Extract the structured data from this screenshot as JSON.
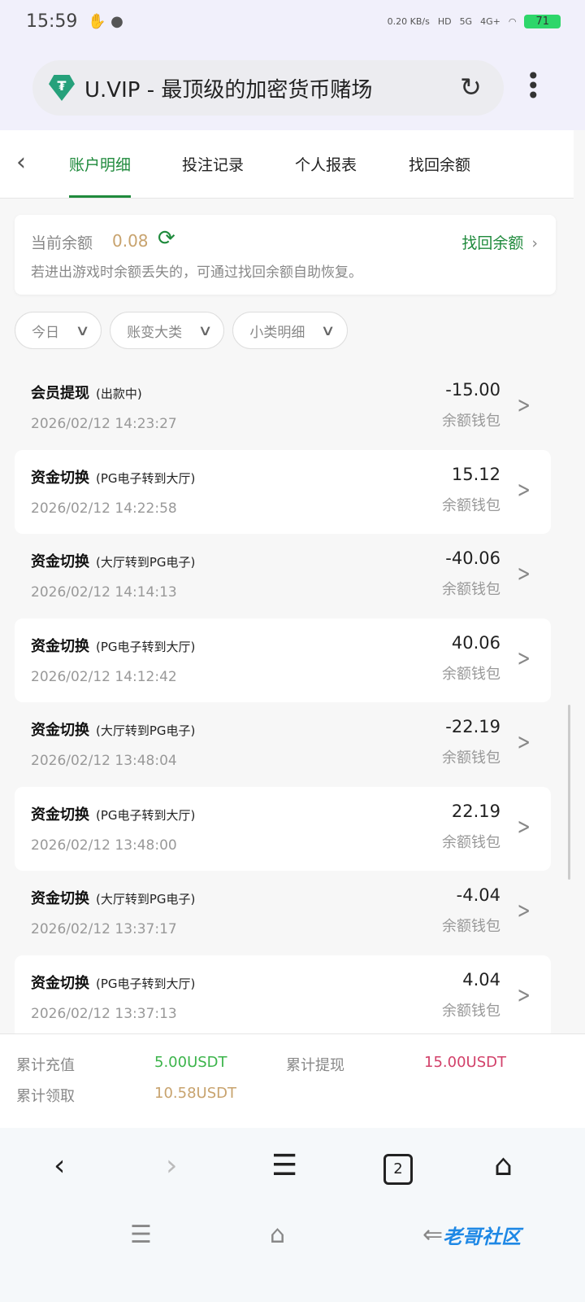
{
  "status_bar": {
    "time": "15:59",
    "net_speed": "0.20 KB/s",
    "hd": "HD",
    "signal1": "5G",
    "signal2": "4G+",
    "battery": "71"
  },
  "browser": {
    "title": "U.VIP - 最顶级的加密货币赌场",
    "logo_glyph": "₮"
  },
  "tabs": [
    {
      "label": "账户明细",
      "active": true
    },
    {
      "label": "投注记录"
    },
    {
      "label": "个人报表"
    },
    {
      "label": "找回余额"
    }
  ],
  "balance": {
    "label": "当前余额",
    "value": "0.08",
    "recover_label": "找回余额",
    "tip": "若进出游戏时余额丢失的，可通过找回余额自助恢复。"
  },
  "filters": [
    {
      "label": "今日"
    },
    {
      "label": "账变大类"
    },
    {
      "label": "小类明细"
    }
  ],
  "records": [
    {
      "title": "会员提现",
      "sub": "(出款中)",
      "date": "2026/02/12 14:23:27",
      "amount": "-15.00",
      "wallet": "余额钱包"
    },
    {
      "title": "资金切换",
      "sub": "(PG电子转到大厅)",
      "date": "2026/02/12 14:22:58",
      "amount": "15.12",
      "wallet": "余额钱包"
    },
    {
      "title": "资金切换",
      "sub": "(大厅转到PG电子)",
      "date": "2026/02/12 14:14:13",
      "amount": "-40.06",
      "wallet": "余额钱包"
    },
    {
      "title": "资金切换",
      "sub": "(PG电子转到大厅)",
      "date": "2026/02/12 14:12:42",
      "amount": "40.06",
      "wallet": "余额钱包"
    },
    {
      "title": "资金切换",
      "sub": "(大厅转到PG电子)",
      "date": "2026/02/12 13:48:04",
      "amount": "-22.19",
      "wallet": "余额钱包"
    },
    {
      "title": "资金切换",
      "sub": "(PG电子转到大厅)",
      "date": "2026/02/12 13:48:00",
      "amount": "22.19",
      "wallet": "余额钱包"
    },
    {
      "title": "资金切换",
      "sub": "(大厅转到PG电子)",
      "date": "2026/02/12 13:37:17",
      "amount": "-4.04",
      "wallet": "余额钱包"
    },
    {
      "title": "资金切换",
      "sub": "(PG电子转到大厅)",
      "date": "2026/02/12 13:37:13",
      "amount": "4.04",
      "wallet": "余额钱包"
    }
  ],
  "summary": {
    "deposit_label": "累计充值",
    "deposit": "5.00USDT",
    "withdraw_label": "累计提现",
    "withdraw": "15.00USDT",
    "claim_label": "累计领取",
    "claim": "10.58USDT"
  },
  "colors": {
    "accent": "#1f8a3c",
    "deposit": "#3cb44b",
    "withdraw": "#d2416a",
    "claim": "#c8a36e"
  },
  "browser_nav": {
    "tab_count": "2"
  },
  "watermark": "老哥社区"
}
